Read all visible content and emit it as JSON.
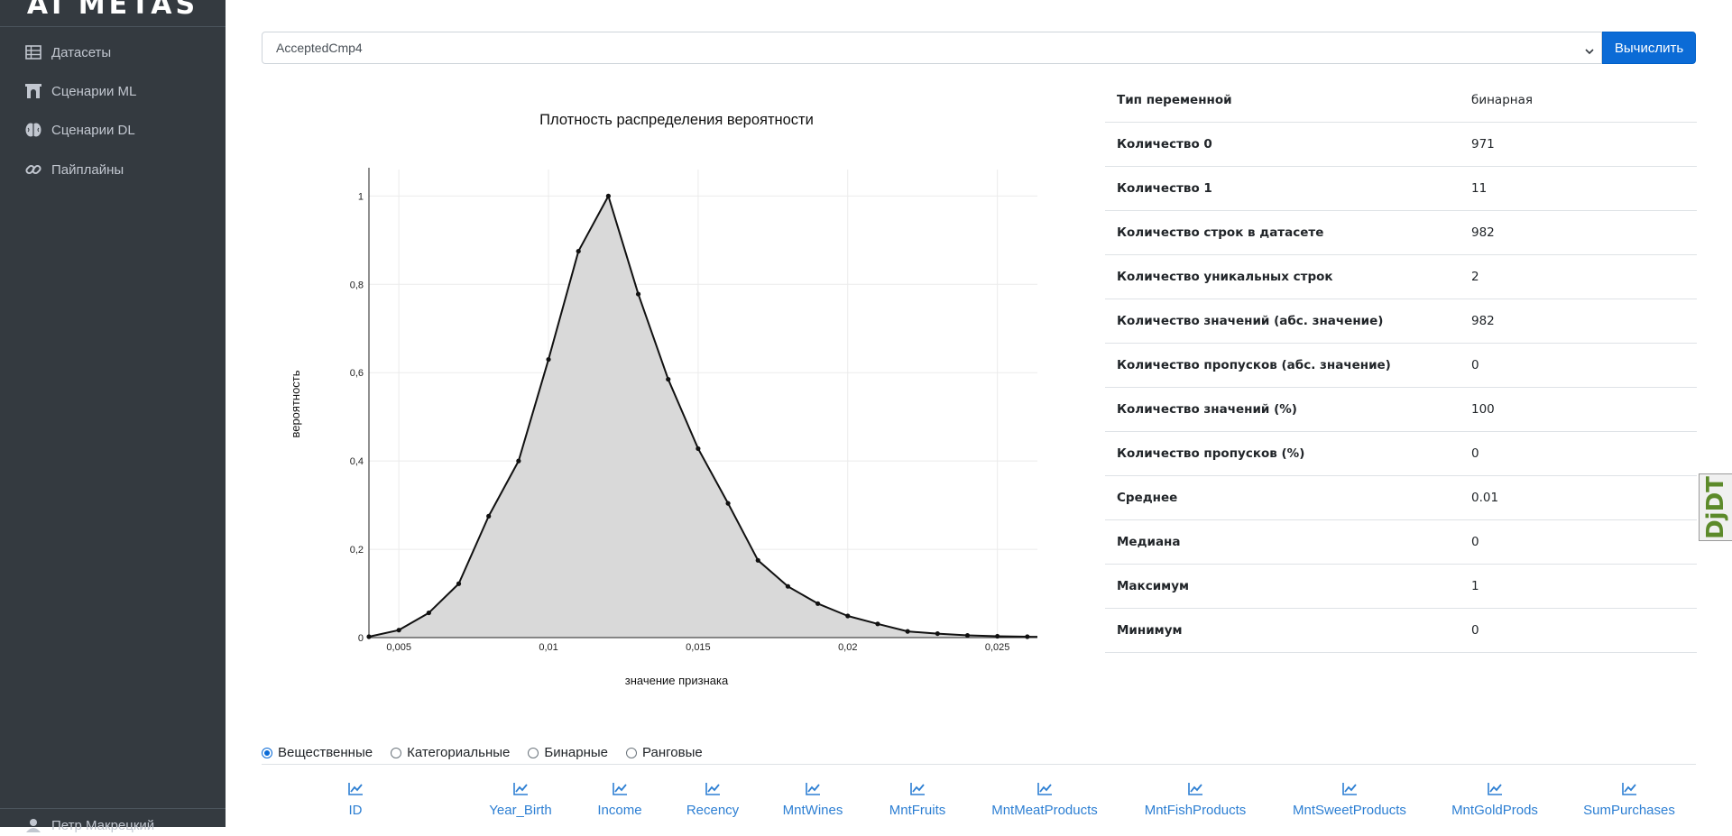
{
  "sidebar": {
    "logo": "AI METAS",
    "items": [
      {
        "label": "Датасеты",
        "icon": "table-icon"
      },
      {
        "label": "Сценарии ML",
        "icon": "archway-icon"
      },
      {
        "label": "Сценарии DL",
        "icon": "brain-icon"
      },
      {
        "label": "Пайплайны",
        "icon": "link-icon"
      }
    ],
    "user": "Петр Макрецкий"
  },
  "toolbar": {
    "selected_feature": "AcceptedCmp4",
    "calc_label": "Вычислить"
  },
  "chart_data": {
    "type": "area",
    "title": "Плотность распределения вероятности",
    "xlabel": "значение признака",
    "ylabel": "вероятность",
    "xlim": [
      0.004,
      0.027
    ],
    "ylim": [
      0,
      1.06
    ],
    "xticks": [
      0.005,
      0.01,
      0.015,
      0.02,
      0.025
    ],
    "xtick_labels": [
      "0,005",
      "0,01",
      "0,015",
      "0,02",
      "0,025"
    ],
    "yticks": [
      0,
      0.2,
      0.4,
      0.6,
      0.8,
      1
    ],
    "ytick_labels": [
      "0",
      "0,2",
      "0,4",
      "0,6",
      "0,8",
      "1"
    ],
    "grid": true,
    "series": [
      {
        "x": [
          0.004,
          0.005,
          0.006,
          0.007,
          0.008,
          0.009,
          0.01,
          0.011,
          0.012,
          0.013,
          0.014,
          0.015,
          0.016,
          0.017,
          0.018,
          0.019,
          0.02,
          0.021,
          0.022,
          0.023,
          0.024,
          0.025,
          0.026,
          0.027
        ],
        "y": [
          0.002,
          0.017,
          0.056,
          0.122,
          0.275,
          0.4,
          0.63,
          0.875,
          1.0,
          0.778,
          0.585,
          0.428,
          0.304,
          0.175,
          0.116,
          0.077,
          0.049,
          0.031,
          0.014,
          0.009,
          0.005,
          0.003,
          0.002,
          0.001
        ]
      }
    ]
  },
  "stats": [
    {
      "label": "Тип переменной",
      "value": "бинарная"
    },
    {
      "label": "Количество 0",
      "value": "971"
    },
    {
      "label": "Количество 1",
      "value": "11"
    },
    {
      "label": "Количество строк в датасете",
      "value": "982"
    },
    {
      "label": "Количество уникальных строк",
      "value": "2"
    },
    {
      "label": "Количество значений (абс. значение)",
      "value": "982"
    },
    {
      "label": "Количество пропусков (абс. значение)",
      "value": "0"
    },
    {
      "label": "Количество значений (%)",
      "value": "100"
    },
    {
      "label": "Количество пропусков (%)",
      "value": "0"
    },
    {
      "label": "Среднее",
      "value": "0.01"
    },
    {
      "label": "Медиана",
      "value": "0"
    },
    {
      "label": "Максимум",
      "value": "1"
    },
    {
      "label": "Минимум",
      "value": "0"
    }
  ],
  "radios": [
    {
      "label": "Вещественные",
      "checked": true
    },
    {
      "label": "Категориальные",
      "checked": false
    },
    {
      "label": "Бинарные",
      "checked": false
    },
    {
      "label": "Ранговые",
      "checked": false
    }
  ],
  "features": [
    "ID",
    "Year_Birth",
    "Income",
    "Recency",
    "MntWines",
    "MntFruits",
    "MntMeatProducts",
    "MntFishProducts",
    "MntSweetProducts",
    "MntGoldProds",
    "SumPurchases"
  ],
  "debug_toolbar": {
    "label": "DjDT"
  },
  "colors": {
    "sidebar_bg": "#343a40",
    "accent": "#0b6bd6",
    "link": "#2d7fd3",
    "area_fill": "#d9d9d9"
  }
}
